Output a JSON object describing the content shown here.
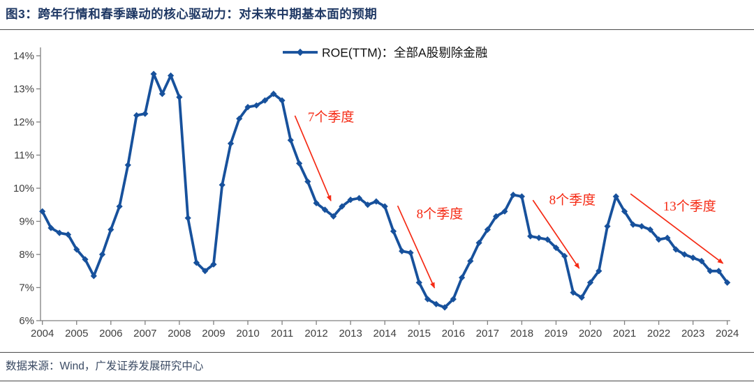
{
  "title": "图3：跨年行情和春季躁动的核心驱动力：对未来中期基本面的预期",
  "footer": {
    "text": "数据来源：Wind，广发证券发展研究中心"
  },
  "legend": {
    "label": "ROE(TTM)：全部A股剔除金融"
  },
  "colors": {
    "line": "#17519C",
    "annotation": "#F52A14",
    "title": "#1F3864",
    "axis": "#808080",
    "tick_label": "#3f3f3f",
    "footer": "#3A4A63"
  },
  "chart_data": {
    "type": "line",
    "title": "图3：跨年行情和春季躁动的核心驱动力：对未来中期基本面的预期",
    "frequency": "quarterly",
    "x_start": "2004Q1",
    "x_end": "2024Q1",
    "x_tick_labels": [
      "2004",
      "2005",
      "2006",
      "2007",
      "2008",
      "2009",
      "2010",
      "2011",
      "2012",
      "2013",
      "2014",
      "2015",
      "2016",
      "2017",
      "2018",
      "2019",
      "2020",
      "2021",
      "2022",
      "2023",
      "2024"
    ],
    "y_tick_labels": [
      "6%",
      "7%",
      "8%",
      "9%",
      "10%",
      "11%",
      "12%",
      "13%",
      "14%"
    ],
    "ylim": [
      6,
      14
    ],
    "grid": false,
    "legend_position": "top-center",
    "series": [
      {
        "name": "ROE(TTM)：全部A股剔除金融",
        "marker": "diamond",
        "values": [
          9.3,
          8.8,
          8.65,
          8.6,
          8.15,
          7.85,
          7.35,
          8.0,
          8.75,
          9.45,
          10.7,
          12.2,
          12.25,
          13.45,
          12.85,
          13.4,
          12.75,
          9.1,
          7.75,
          7.5,
          7.7,
          10.1,
          11.35,
          12.1,
          12.45,
          12.5,
          12.65,
          12.85,
          12.65,
          11.45,
          10.75,
          10.2,
          9.55,
          9.35,
          9.15,
          9.45,
          9.65,
          9.7,
          9.5,
          9.6,
          9.45,
          8.7,
          8.1,
          8.05,
          7.15,
          6.65,
          6.5,
          6.4,
          6.65,
          7.3,
          7.8,
          8.35,
          8.75,
          9.15,
          9.3,
          9.8,
          9.75,
          8.55,
          8.5,
          8.45,
          8.2,
          7.95,
          6.85,
          6.7,
          7.15,
          7.5,
          8.85,
          9.75,
          9.3,
          8.9,
          8.85,
          8.75,
          8.45,
          8.5,
          8.15,
          8.0,
          7.9,
          7.8,
          7.5,
          7.5,
          7.15
        ]
      }
    ],
    "annotations": [
      {
        "label": "7个季度",
        "arrow_from_q": 29.5,
        "arrow_from_v": 12.19,
        "arrow_to_q": 33.7,
        "arrow_to_v": 9.62,
        "label_q": 31.0,
        "label_v": 12.02
      },
      {
        "label": "8个季度",
        "arrow_from_q": 41.5,
        "arrow_from_v": 9.47,
        "arrow_to_q": 45.8,
        "arrow_to_v": 6.99,
        "label_q": 43.7,
        "label_v": 9.09
      },
      {
        "label": "8个季度",
        "arrow_from_q": 57.3,
        "arrow_from_v": 9.64,
        "arrow_to_q": 62.7,
        "arrow_to_v": 7.58,
        "label_q": 59.2,
        "label_v": 9.52
      },
      {
        "label": "13个季度",
        "arrow_from_q": 68.7,
        "arrow_from_v": 9.83,
        "arrow_to_q": 79.5,
        "arrow_to_v": 7.73,
        "label_q": 72.5,
        "label_v": 9.33
      }
    ]
  }
}
